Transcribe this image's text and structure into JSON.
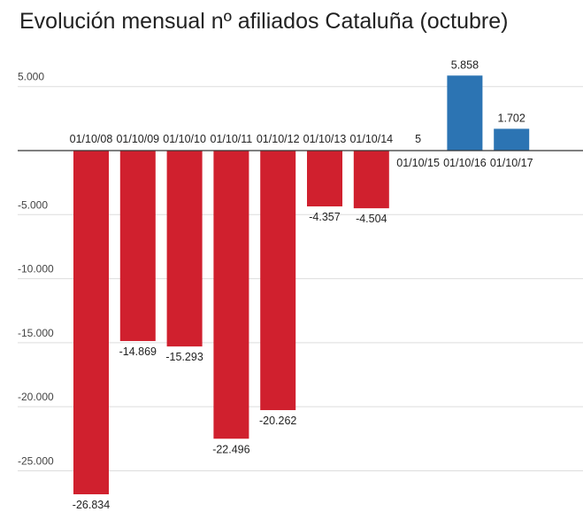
{
  "chart_data": {
    "type": "bar",
    "title": "Evolución mensual nº afiliados Cataluña (octubre)",
    "xlabel": "",
    "ylabel": "",
    "ylim": [
      -27000,
      7000
    ],
    "grid": true,
    "legend": "none",
    "categories": [
      "01/10/08",
      "01/10/09",
      "01/10/10",
      "01/10/11",
      "01/10/12",
      "01/10/13",
      "01/10/14",
      "01/10/15",
      "01/10/16",
      "01/10/17"
    ],
    "values": [
      -26834,
      -14869,
      -15293,
      -22496,
      -20262,
      -4357,
      -4504,
      5,
      5858,
      1702
    ],
    "value_labels": [
      "-26.834",
      "-14.869",
      "-15.293",
      "-22.496",
      "-20.262",
      "-4.357",
      "-4.504",
      "5",
      "5.858",
      "1.702"
    ],
    "y_ticks": [
      5000,
      -5000,
      -10000,
      -15000,
      -20000,
      -25000
    ],
    "y_tick_labels": [
      "5.000",
      "-5.000",
      "-10.000",
      "-15.000",
      "-20.000",
      "-25.000"
    ],
    "colors": {
      "negative": "#d0202e",
      "positive": "#2c74b3",
      "grid": "#dddddd",
      "axis": "#333333"
    }
  }
}
